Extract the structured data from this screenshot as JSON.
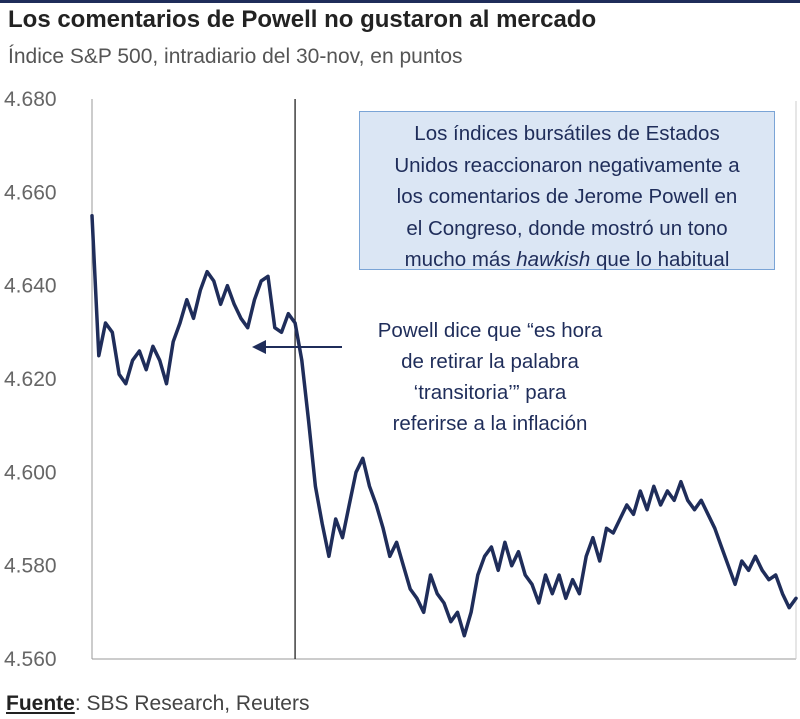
{
  "title": "Los comentarios de Powell no gustaron al mercado",
  "subtitle": "Índice S&P 500, intradiario del 30-nov, en puntos",
  "callout": {
    "lines": [
      "Los índices bursátiles de Estados",
      "Unidos reaccionaron negativamente a",
      "los comentarios de Jerome Powell en",
      "el Congreso, donde mostró un tono"
    ],
    "last_line_pre": "mucho más ",
    "last_line_em": "hawkish",
    "last_line_post": " que lo habitual"
  },
  "annotation": "Powell dice que “es hora\nde retirar la palabra\n‘transitoria’” para\nreferirse a la inflación",
  "source_label": "Fuente",
  "source_text": ": SBS Research, Reuters",
  "colors": {
    "line": "#1f2d5a",
    "box_fill": "#dbe6f4",
    "box_border": "#7aa4d6",
    "axis": "#999999"
  },
  "chart_data": {
    "type": "line",
    "title": "Los comentarios de Powell no gustaron al mercado",
    "subtitle": "Índice S&P 500, intradiario del 30-nov, en puntos",
    "ylim": [
      4560,
      4680
    ],
    "yticks": [
      4560,
      4580,
      4600,
      4620,
      4640,
      4660,
      4680
    ],
    "ytick_labels": [
      "4.560",
      "4.580",
      "4.600",
      "4.620",
      "4.640",
      "4.660",
      "4.680"
    ],
    "grid": false,
    "event_index": 30,
    "series": [
      {
        "values": [
          4655,
          4625,
          4632,
          4630,
          4621,
          4619,
          4624,
          4626,
          4622,
          4627,
          4624,
          4619,
          4628,
          4632,
          4637,
          4633,
          4639,
          4643,
          4641,
          4636,
          4640,
          4636,
          4633,
          4631,
          4637,
          4641,
          4642,
          4631,
          4630,
          4634,
          4632,
          4624,
          4611,
          4597,
          4589,
          4582,
          4590,
          4586,
          4593,
          4600,
          4603,
          4597,
          4593,
          4588,
          4582,
          4585,
          4580,
          4575,
          4573,
          4570,
          4578,
          4574,
          4572,
          4568,
          4570,
          4565,
          4570,
          4578,
          4582,
          4584,
          4579,
          4585,
          4580,
          4583,
          4578,
          4576,
          4572,
          4578,
          4574,
          4578,
          4573,
          4577,
          4574,
          4582,
          4586,
          4581,
          4588,
          4587,
          4590,
          4593,
          4591,
          4596,
          4592,
          4597,
          4593,
          4596,
          4594,
          4598,
          4594,
          4592,
          4594,
          4591,
          4588,
          4584,
          4580,
          4576,
          4581,
          4579,
          4582,
          4579,
          4577,
          4578,
          4574,
          4571,
          4573
        ]
      }
    ]
  }
}
